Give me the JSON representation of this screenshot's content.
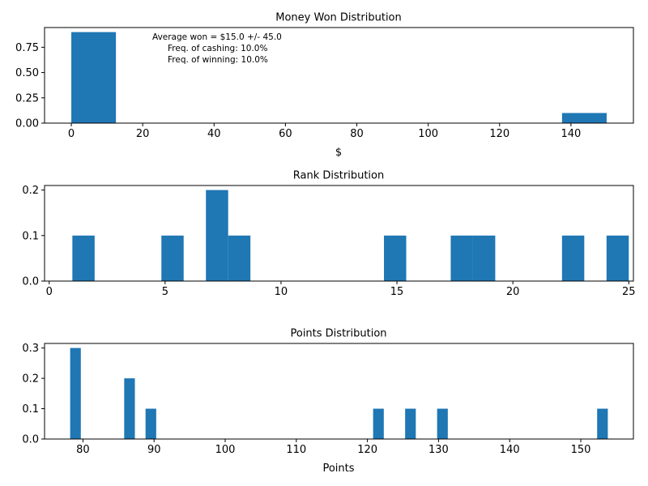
{
  "colors": {
    "bar": "#1f77b4",
    "axis": "#000000",
    "background": "#ffffff"
  },
  "chart_data": [
    {
      "type": "bar",
      "title": "Money Won Distribution",
      "xlabel": "$",
      "ylabel": "",
      "xlim": [
        -7.5,
        157.5
      ],
      "ylim": [
        0,
        0.945
      ],
      "xticks": [
        0,
        20,
        40,
        60,
        80,
        100,
        120,
        140
      ],
      "yticks": [
        0.0,
        0.25,
        0.5,
        0.75
      ],
      "ytick_labels": [
        "0.00",
        "0.25",
        "0.50",
        "0.75"
      ],
      "bars": [
        {
          "x0": 0,
          "x1": 12.5,
          "value": 0.9
        },
        {
          "x0": 137.5,
          "x1": 150,
          "value": 0.1
        }
      ],
      "annotation": [
        "Average won = $15.0 +/- 45.0",
        "Freq. of cashing: 10.0%",
        "Freq. of winning: 10.0%"
      ]
    },
    {
      "type": "bar",
      "title": "Rank Distribution",
      "xlabel": "",
      "ylabel": "",
      "xlim": [
        -0.2,
        25.2
      ],
      "ylim": [
        0,
        0.21
      ],
      "xticks": [
        0,
        5,
        10,
        15,
        20,
        25
      ],
      "yticks": [
        0.0,
        0.1,
        0.2
      ],
      "ytick_labels": [
        "0.0",
        "0.1",
        "0.2"
      ],
      "bars": [
        {
          "x0": 1.0,
          "x1": 1.96,
          "value": 0.1
        },
        {
          "x0": 4.84,
          "x1": 5.8,
          "value": 0.1
        },
        {
          "x0": 6.76,
          "x1": 7.72,
          "value": 0.2
        },
        {
          "x0": 7.72,
          "x1": 8.68,
          "value": 0.1
        },
        {
          "x0": 14.44,
          "x1": 15.4,
          "value": 0.1
        },
        {
          "x0": 17.32,
          "x1": 18.28,
          "value": 0.1
        },
        {
          "x0": 18.28,
          "x1": 19.24,
          "value": 0.1
        },
        {
          "x0": 22.12,
          "x1": 23.08,
          "value": 0.1
        },
        {
          "x0": 24.04,
          "x1": 25.0,
          "value": 0.1
        }
      ]
    },
    {
      "type": "bar",
      "title": "Points Distribution",
      "xlabel": "Points",
      "ylabel": "",
      "xlim": [
        74.6,
        157.4
      ],
      "ylim": [
        0,
        0.315
      ],
      "xticks": [
        80,
        90,
        100,
        110,
        120,
        130,
        140,
        150
      ],
      "yticks": [
        0.0,
        0.1,
        0.2,
        0.3
      ],
      "ytick_labels": [
        "0.0",
        "0.1",
        "0.2",
        "0.3"
      ],
      "bars": [
        {
          "x0": 78.2,
          "x1": 79.7,
          "value": 0.3
        },
        {
          "x0": 85.8,
          "x1": 87.3,
          "value": 0.2
        },
        {
          "x0": 88.8,
          "x1": 90.3,
          "value": 0.1
        },
        {
          "x0": 120.8,
          "x1": 122.3,
          "value": 0.1
        },
        {
          "x0": 125.3,
          "x1": 126.8,
          "value": 0.1
        },
        {
          "x0": 129.8,
          "x1": 131.3,
          "value": 0.1
        },
        {
          "x0": 152.3,
          "x1": 153.8,
          "value": 0.1
        }
      ]
    }
  ]
}
